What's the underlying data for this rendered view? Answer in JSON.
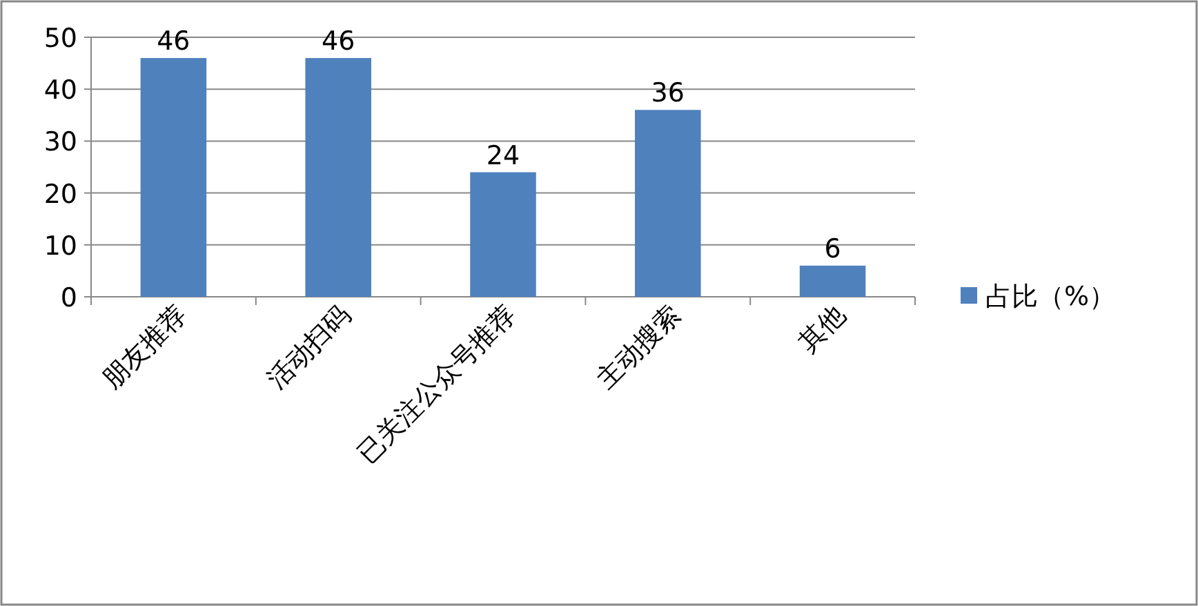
{
  "chart_data": {
    "type": "bar",
    "categories": [
      "朋友推荐",
      "活动扫码",
      "已关注公众号推荐",
      "主动搜索",
      "其他"
    ],
    "series": [
      {
        "name": "占比（%）",
        "color": "#4f81bd",
        "values": [
          46,
          46,
          24,
          36,
          6
        ]
      }
    ],
    "ylim": [
      0,
      50
    ],
    "yticks": [
      0,
      10,
      20,
      30,
      40,
      50
    ],
    "grid": "y",
    "data_labels": true,
    "legend": "right"
  }
}
